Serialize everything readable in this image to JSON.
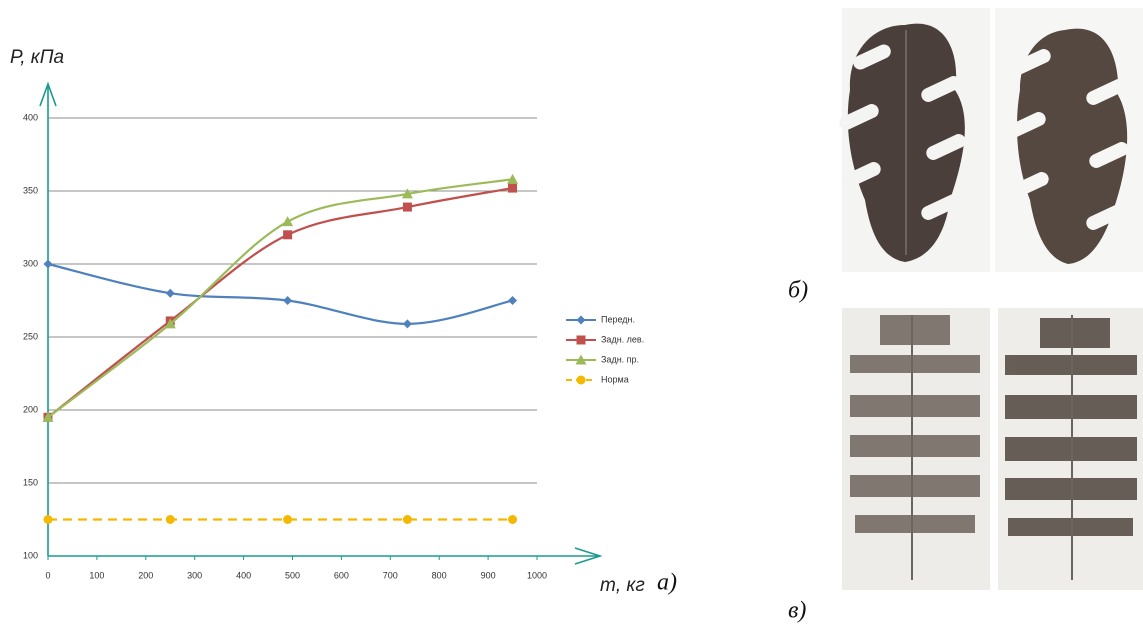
{
  "chart_data": {
    "type": "line",
    "y_label": "P, кПа",
    "x_label": "m, кг",
    "label": "а)",
    "x": [
      0,
      250,
      490,
      735,
      950
    ],
    "series": [
      {
        "name": "Передн.",
        "color": "#4f81bd",
        "marker": "diamond",
        "values": [
          300,
          280,
          275,
          259,
          275
        ]
      },
      {
        "name": "Задн. лев.",
        "color": "#c0504d",
        "marker": "square",
        "values": [
          195,
          261,
          320,
          339,
          352
        ]
      },
      {
        "name": "Задн. пр.",
        "color": "#9bbb59",
        "marker": "triangle",
        "values": [
          195,
          259,
          329,
          348,
          358
        ]
      },
      {
        "name": "Норма",
        "color": "#f5b800",
        "marker": "circle",
        "dashed": true,
        "values": [
          125,
          125,
          125,
          125,
          125
        ]
      }
    ],
    "xlim": [
      0,
      1000
    ],
    "xticks": [
      0,
      100,
      200,
      300,
      400,
      500,
      600,
      700,
      800,
      900,
      1000
    ],
    "ylim": [
      100,
      400
    ],
    "yticks": [
      100,
      150,
      200,
      250,
      300,
      350,
      400
    ],
    "grid": true,
    "smooth": true,
    "axis_color": "#1a9b8c"
  },
  "panels": [
    "б)",
    "в)"
  ]
}
